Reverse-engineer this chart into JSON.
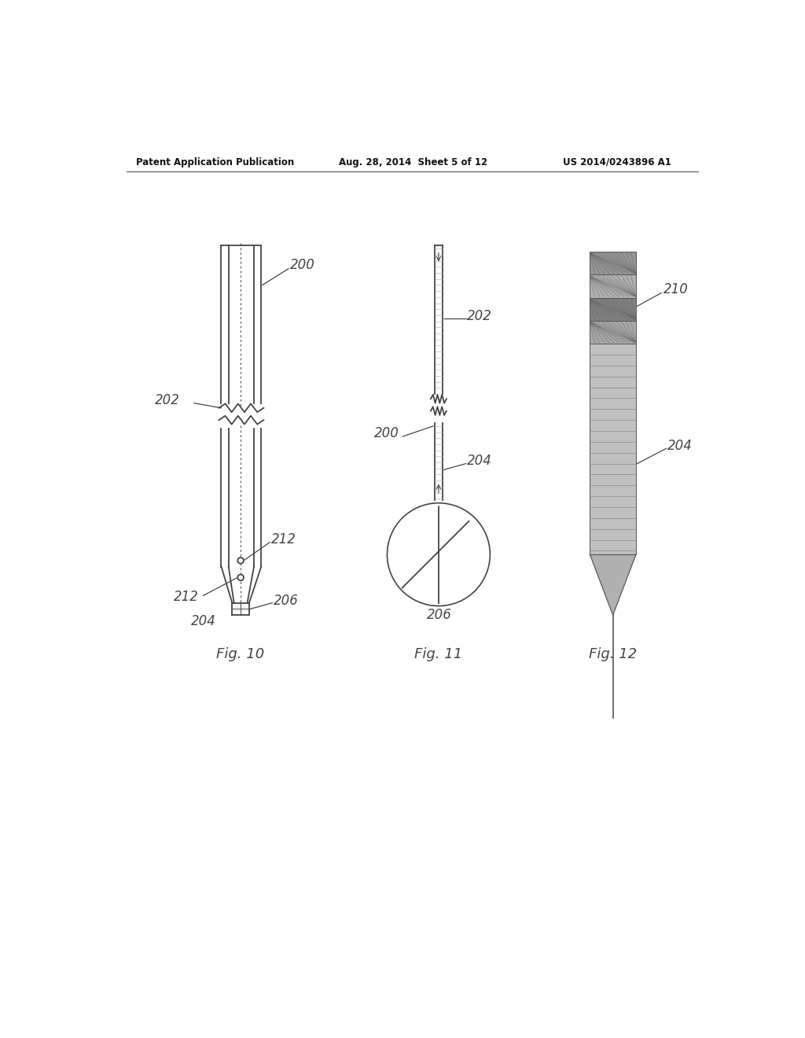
{
  "bg_color": "#ffffff",
  "header_left": "Patent Application Publication",
  "header_mid": "Aug. 28, 2014  Sheet 5 of 12",
  "header_right": "US 2014/0243896 A1",
  "fig10_label": "Fig. 10",
  "fig11_label": "Fig. 11",
  "fig12_label": "Fig. 12",
  "line_color": "#444444",
  "gray_med": "#999999",
  "gray_dark": "#777777",
  "gray_light": "#bbbbbb"
}
